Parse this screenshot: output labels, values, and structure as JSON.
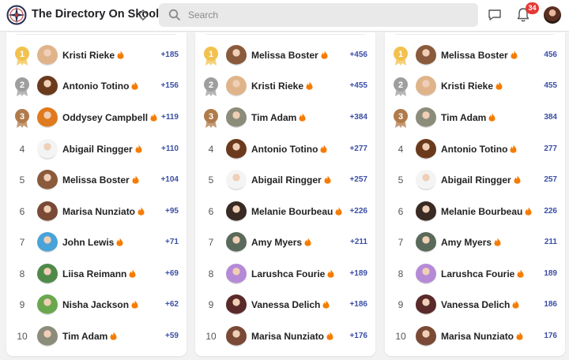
{
  "header": {
    "title": "The Directory On Skool",
    "search_placeholder": "Search",
    "notification_count": "34"
  },
  "leaderboards": [
    {
      "rows": [
        {
          "rank": "1",
          "name": "Kristi Rieke",
          "points": "+185",
          "medal": "gold",
          "avatar": "#e0b48a"
        },
        {
          "rank": "2",
          "name": "Antonio Totino",
          "points": "+156",
          "medal": "silver",
          "avatar": "#6b3a1c"
        },
        {
          "rank": "3",
          "name": "Oddysey Campbell",
          "points": "+119",
          "medal": "bronze",
          "avatar": "#e07a1e"
        },
        {
          "rank": "4",
          "name": "Abigail Ringger",
          "points": "+110",
          "medal": "",
          "avatar": "#f4f4f4"
        },
        {
          "rank": "5",
          "name": "Melissa Boster",
          "points": "+104",
          "medal": "",
          "avatar": "#8a5a3c"
        },
        {
          "rank": "6",
          "name": "Marisa Nunziato",
          "points": "+95",
          "medal": "",
          "avatar": "#7a4a36"
        },
        {
          "rank": "7",
          "name": "John Lewis",
          "points": "+71",
          "medal": "",
          "avatar": "#4aa3d8"
        },
        {
          "rank": "8",
          "name": "Liisa Reimann",
          "points": "+69",
          "medal": "",
          "avatar": "#4f8a4a"
        },
        {
          "rank": "9",
          "name": "Nisha Jackson",
          "points": "+62",
          "medal": "",
          "avatar": "#6aa84f"
        },
        {
          "rank": "10",
          "name": "Tim Adam",
          "points": "+59",
          "medal": "",
          "avatar": "#8c8c7a"
        }
      ]
    },
    {
      "rows": [
        {
          "rank": "1",
          "name": "Melissa Boster",
          "points": "+456",
          "medal": "gold",
          "avatar": "#8a5a3c"
        },
        {
          "rank": "2",
          "name": "Kristi Rieke",
          "points": "+455",
          "medal": "silver",
          "avatar": "#e0b48a"
        },
        {
          "rank": "3",
          "name": "Tim Adam",
          "points": "+384",
          "medal": "bronze",
          "avatar": "#8c8c7a"
        },
        {
          "rank": "4",
          "name": "Antonio Totino",
          "points": "+277",
          "medal": "",
          "avatar": "#6b3a1c"
        },
        {
          "rank": "5",
          "name": "Abigail Ringger",
          "points": "+257",
          "medal": "",
          "avatar": "#f4f4f4"
        },
        {
          "rank": "6",
          "name": "Melanie Bourbeau",
          "points": "+226",
          "medal": "",
          "avatar": "#3a2a24"
        },
        {
          "rank": "7",
          "name": "Amy Myers",
          "points": "+211",
          "medal": "",
          "avatar": "#5a6a5a"
        },
        {
          "rank": "8",
          "name": "Larushca Fourie",
          "points": "+189",
          "medal": "",
          "avatar": "#b58ad6"
        },
        {
          "rank": "9",
          "name": "Vanessa Delich",
          "points": "+186",
          "medal": "",
          "avatar": "#5a2a2a"
        },
        {
          "rank": "10",
          "name": "Marisa Nunziato",
          "points": "+176",
          "medal": "",
          "avatar": "#7a4a36"
        }
      ]
    },
    {
      "rows": [
        {
          "rank": "1",
          "name": "Melissa Boster",
          "points": "456",
          "medal": "gold",
          "avatar": "#8a5a3c"
        },
        {
          "rank": "2",
          "name": "Kristi Rieke",
          "points": "455",
          "medal": "silver",
          "avatar": "#e0b48a"
        },
        {
          "rank": "3",
          "name": "Tim Adam",
          "points": "384",
          "medal": "bronze",
          "avatar": "#8c8c7a"
        },
        {
          "rank": "4",
          "name": "Antonio Totino",
          "points": "277",
          "medal": "",
          "avatar": "#6b3a1c"
        },
        {
          "rank": "5",
          "name": "Abigail Ringger",
          "points": "257",
          "medal": "",
          "avatar": "#f4f4f4"
        },
        {
          "rank": "6",
          "name": "Melanie Bourbeau",
          "points": "226",
          "medal": "",
          "avatar": "#3a2a24"
        },
        {
          "rank": "7",
          "name": "Amy Myers",
          "points": "211",
          "medal": "",
          "avatar": "#5a6a5a"
        },
        {
          "rank": "8",
          "name": "Larushca Fourie",
          "points": "189",
          "medal": "",
          "avatar": "#b58ad6"
        },
        {
          "rank": "9",
          "name": "Vanessa Delich",
          "points": "186",
          "medal": "",
          "avatar": "#5a2a2a"
        },
        {
          "rank": "10",
          "name": "Marisa Nunziato",
          "points": "176",
          "medal": "",
          "avatar": "#7a4a36"
        }
      ]
    }
  ],
  "colors": {
    "gold": "#f2c14e",
    "silver": "#9e9e9e",
    "bronze": "#b07a4a",
    "points": "#3b4fa6",
    "flame": "#f57c00"
  }
}
